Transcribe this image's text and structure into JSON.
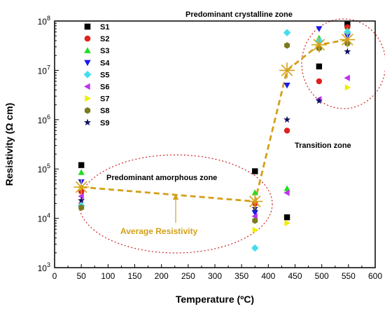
{
  "chart_data": {
    "type": "scatter",
    "xlabel": "Temperature (ºC)",
    "ylabel": "Resistivity (Ω cm)",
    "xlim": [
      0,
      600
    ],
    "ylim_log10": [
      3,
      8
    ],
    "y_scale": "log",
    "x_ticks": [
      "0",
      "50",
      "100",
      "150",
      "200",
      "250",
      "300",
      "350",
      "400",
      "450",
      "500",
      "550",
      "600"
    ],
    "y_ticks": [
      {
        "value": 1000,
        "base": "10",
        "exp": "3"
      },
      {
        "value": 10000,
        "base": "10",
        "exp": "4"
      },
      {
        "value": 100000,
        "base": "10",
        "exp": "5"
      },
      {
        "value": 1000000,
        "base": "10",
        "exp": "6"
      },
      {
        "value": 10000000,
        "base": "10",
        "exp": "7"
      },
      {
        "value": 100000000,
        "base": "10",
        "exp": "8"
      }
    ],
    "grid": false,
    "legend_position": "top-left",
    "series": [
      {
        "name": "S1",
        "marker": "square",
        "color": "#000000",
        "points": [
          [
            50,
            120000
          ],
          [
            375,
            90000
          ],
          [
            435,
            10500
          ],
          [
            495,
            12000000
          ],
          [
            548,
            85000000
          ]
        ]
      },
      {
        "name": "S2",
        "marker": "circle",
        "color": "#e02020",
        "points": [
          [
            50,
            35000
          ],
          [
            375,
            20000
          ],
          [
            435,
            600000
          ],
          [
            495,
            6000000
          ],
          [
            548,
            75000000
          ]
        ]
      },
      {
        "name": "S3",
        "marker": "triangle-up",
        "color": "#22dd22",
        "points": [
          [
            50,
            85000
          ],
          [
            375,
            33000
          ],
          [
            435,
            40000
          ],
          [
            495,
            45000000
          ],
          [
            548,
            65000000
          ]
        ]
      },
      {
        "name": "S4",
        "marker": "triangle-down",
        "color": "#1a1aee",
        "points": [
          [
            50,
            55000
          ],
          [
            375,
            13000
          ],
          [
            435,
            5000000
          ],
          [
            495,
            70000000
          ],
          [
            548,
            50000000
          ]
        ]
      },
      {
        "name": "S5",
        "marker": "diamond",
        "color": "#44ddee",
        "points": [
          [
            50,
            18000
          ],
          [
            375,
            2500
          ],
          [
            435,
            58000000
          ],
          [
            495,
            40000000
          ],
          [
            548,
            60000000
          ]
        ]
      },
      {
        "name": "S6",
        "marker": "triangle-left",
        "color": "#bb33ee",
        "points": [
          [
            50,
            28000
          ],
          [
            375,
            11000
          ],
          [
            435,
            33000
          ],
          [
            495,
            2600000
          ],
          [
            548,
            7000000
          ]
        ]
      },
      {
        "name": "S7",
        "marker": "triangle-right",
        "color": "#eeee00",
        "points": [
          [
            50,
            42000
          ],
          [
            375,
            5800
          ],
          [
            435,
            8000
          ],
          [
            495,
            30000000
          ],
          [
            548,
            4500000
          ]
        ]
      },
      {
        "name": "S8",
        "marker": "hexagon",
        "color": "#7a7a20",
        "points": [
          [
            50,
            16500
          ],
          [
            375,
            9000
          ],
          [
            435,
            32000000
          ],
          [
            495,
            28000000
          ],
          [
            548,
            35000000
          ]
        ]
      },
      {
        "name": "S9",
        "marker": "star",
        "color": "#101060",
        "points": [
          [
            50,
            23000
          ],
          [
            375,
            16000
          ],
          [
            435,
            1000000
          ],
          [
            495,
            2400000
          ],
          [
            548,
            24000000
          ]
        ]
      }
    ],
    "average_series": {
      "name": "",
      "color": "#d4a017",
      "points": [
        [
          50,
          43000
        ],
        [
          375,
          22000
        ],
        [
          435,
          10000000
        ],
        [
          495,
          33000000
        ],
        [
          548,
          42000000
        ]
      ]
    },
    "annotations": {
      "crystalline": "Predominant crystalline zone",
      "transition": "Transition zone",
      "amorphous": "Predominant amorphous zone",
      "average": "Average Resistivity"
    }
  }
}
